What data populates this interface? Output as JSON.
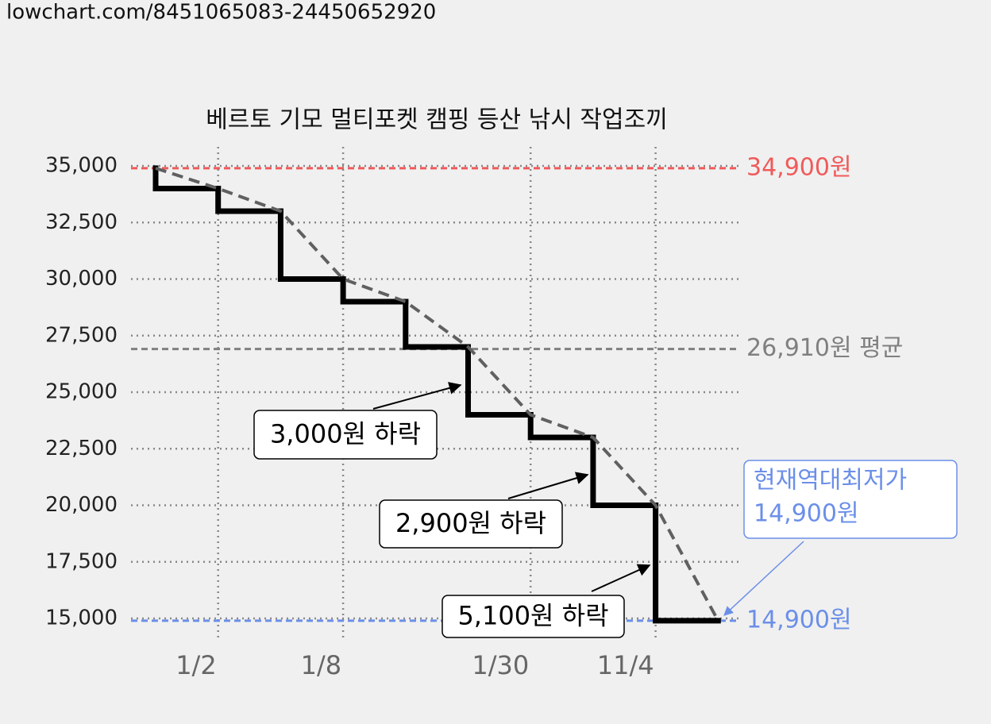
{
  "url": "lowchart.com/8451065083-24450652920",
  "chart_data": {
    "type": "line",
    "step": true,
    "trend_line": true,
    "title": "베르토 기모 멀티포켓 캠핑 등산 낚시 작업조끼",
    "categories": [
      null,
      "1/2",
      null,
      "1/8",
      null,
      null,
      "1/30",
      null,
      "11/4",
      null
    ],
    "series": [
      {
        "color": "#000000",
        "trend_color": "#606060",
        "values": [
          34900,
          34000,
          33000,
          30000,
          29000,
          27000,
          24000,
          23000,
          20000,
          14900
        ]
      }
    ],
    "ylim": [
      15000,
      35000
    ],
    "yticks": [
      {
        "value": 15000,
        "label": "15,000"
      },
      {
        "value": 17500,
        "label": "17,500"
      },
      {
        "value": 20000,
        "label": "20,000"
      },
      {
        "value": 22500,
        "label": "22,500"
      },
      {
        "value": 25000,
        "label": "25,000"
      },
      {
        "value": 27500,
        "label": "27,500"
      },
      {
        "value": 30000,
        "label": "30,000"
      },
      {
        "value": 32500,
        "label": "32,500"
      },
      {
        "value": 35000,
        "label": "35,000"
      }
    ],
    "grid": true,
    "reference_lines": [
      {
        "value": 34900,
        "label": "34,900원",
        "color": "#f05a5a"
      },
      {
        "value": 26910,
        "label": "26,910원 평균",
        "color": "#808080"
      },
      {
        "value": 14900,
        "label": "14,900원",
        "color": "#6b8fe8"
      }
    ],
    "annotations": [
      {
        "text": "3,000원 하락"
      },
      {
        "text": "2,900원 하락"
      },
      {
        "text": "5,100원 하락"
      },
      {
        "lines": [
          "현재역대최저가",
          "14,900원"
        ],
        "color": "#6b8fe8"
      }
    ]
  }
}
